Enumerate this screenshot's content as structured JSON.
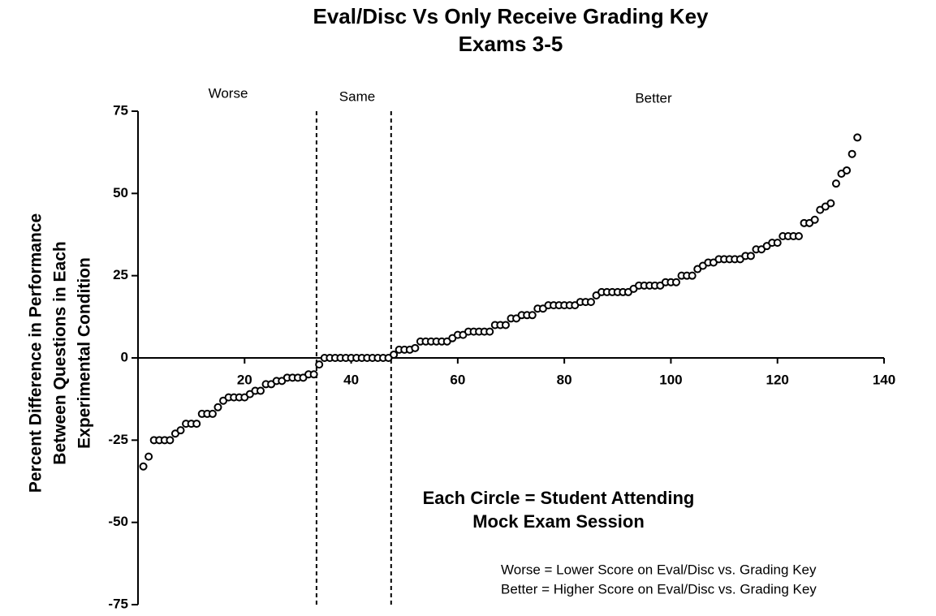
{
  "chart_data": {
    "type": "scatter",
    "title": [
      "Eval/Disc Vs Only Receive Grading Key",
      "Exams 3-5"
    ],
    "y_label": [
      "Percent Difference in Performance",
      "Between Questions in Each",
      "Experimental Condition"
    ],
    "regions": [
      "Worse",
      "Same",
      "Better"
    ],
    "annotation": [
      "Each Circle = Student Attending",
      "Mock Exam Session"
    ],
    "key": [
      "Worse = Lower Score on Eval/Disc vs. Grading Key",
      "Better = Higher Score on Eval/Disc vs. Grading Key"
    ],
    "vlines": [
      33.5,
      47.5
    ],
    "color": "#000000",
    "xlim": [
      0,
      140
    ],
    "ylim": [
      -75,
      75
    ],
    "xticks": [
      20,
      40,
      60,
      80,
      100,
      120,
      140
    ],
    "yticks": [
      -75,
      -50,
      -25,
      0,
      25,
      50,
      75
    ],
    "x": [
      1,
      2,
      3,
      4,
      5,
      6,
      7,
      8,
      9,
      10,
      11,
      12,
      13,
      14,
      15,
      16,
      17,
      18,
      19,
      20,
      21,
      22,
      23,
      24,
      25,
      26,
      27,
      28,
      29,
      30,
      31,
      32,
      33,
      34,
      35,
      36,
      37,
      38,
      39,
      40,
      41,
      42,
      43,
      44,
      45,
      46,
      47,
      48,
      49,
      50,
      51,
      52,
      53,
      54,
      55,
      56,
      57,
      58,
      59,
      60,
      61,
      62,
      63,
      64,
      65,
      66,
      67,
      68,
      69,
      70,
      71,
      72,
      73,
      74,
      75,
      76,
      77,
      78,
      79,
      80,
      81,
      82,
      83,
      84,
      85,
      86,
      87,
      88,
      89,
      90,
      91,
      92,
      93,
      94,
      95,
      96,
      97,
      98,
      99,
      100,
      101,
      102,
      103,
      104,
      105,
      106,
      107,
      108,
      109,
      110,
      111,
      112,
      113,
      114,
      115,
      116,
      117,
      118,
      119,
      120,
      121,
      122,
      123,
      124,
      125,
      126,
      127,
      128,
      129,
      130,
      131,
      132,
      133,
      134,
      135
    ],
    "values": [
      -33,
      -30,
      -25,
      -25,
      -25,
      -25,
      -23,
      -22,
      -20,
      -20,
      -20,
      -17,
      -17,
      -17,
      -15,
      -13,
      -12,
      -12,
      -12,
      -12,
      -11,
      -10,
      -10,
      -8,
      -8,
      -7,
      -7,
      -6,
      -6,
      -6,
      -6,
      -5,
      -5,
      -2,
      0,
      0,
      0,
      0,
      0,
      0,
      0,
      0,
      0,
      0,
      0,
      0,
      0,
      1,
      2.5,
      2.5,
      2.5,
      3,
      5,
      5,
      5,
      5,
      5,
      5,
      6,
      7,
      7,
      8,
      8,
      8,
      8,
      8,
      10,
      10,
      10,
      12,
      12,
      13,
      13,
      13,
      15,
      15,
      16,
      16,
      16,
      16,
      16,
      16,
      17,
      17,
      17,
      19,
      20,
      20,
      20,
      20,
      20,
      20,
      21,
      22,
      22,
      22,
      22,
      22,
      23,
      23,
      23,
      25,
      25,
      25,
      27,
      28,
      29,
      29,
      30,
      30,
      30,
      30,
      30,
      31,
      31,
      33,
      33,
      34,
      35,
      35,
      37,
      37,
      37,
      37,
      41,
      41,
      42,
      45,
      46,
      47,
      53,
      56,
      57,
      62,
      67
    ]
  }
}
